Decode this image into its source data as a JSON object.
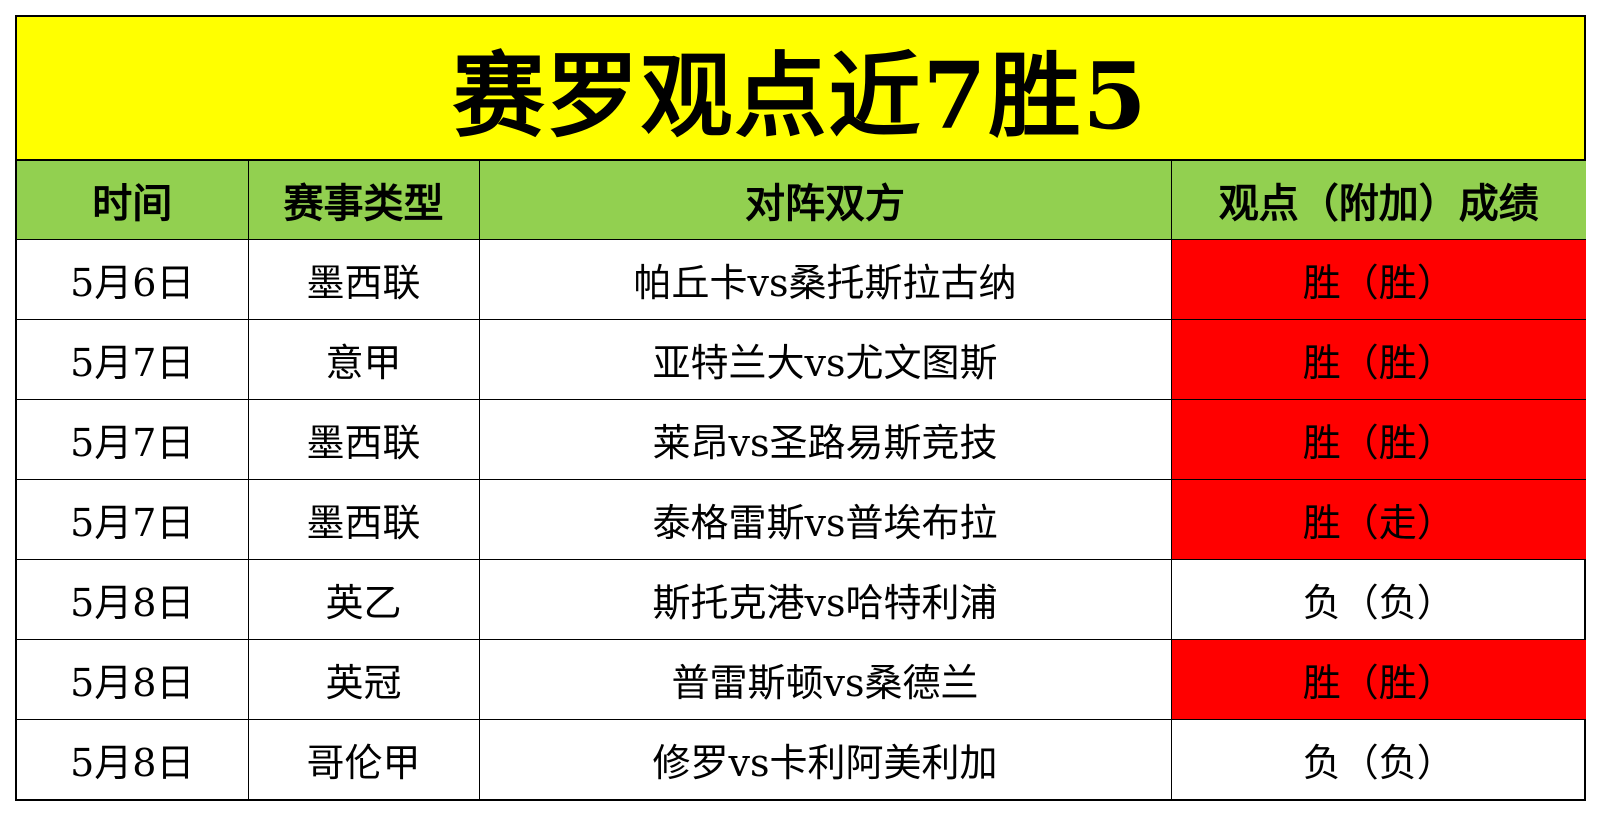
{
  "title": "赛罗观点近7胜5",
  "headers": [
    "时间",
    "赛事类型",
    "对阵双方",
    "观点（附加）成绩"
  ],
  "rows": [
    {
      "date": "5月6日",
      "league": "墨西联",
      "match": "帕丘卡vs桑托斯拉古纳",
      "result": "胜（胜）",
      "win": true
    },
    {
      "date": "5月7日",
      "league": "意甲",
      "match": "亚特兰大vs尤文图斯",
      "result": "胜（胜）",
      "win": true
    },
    {
      "date": "5月7日",
      "league": "墨西联",
      "match": "莱昂vs圣路易斯竞技",
      "result": "胜（胜）",
      "win": true
    },
    {
      "date": "5月7日",
      "league": "墨西联",
      "match": "泰格雷斯vs普埃布拉",
      "result": "胜（走）",
      "win": true
    },
    {
      "date": "5月8日",
      "league": "英乙",
      "match": "斯托克港vs哈特利浦",
      "result": "负（负）",
      "win": false
    },
    {
      "date": "5月8日",
      "league": "英冠",
      "match": "普雷斯顿vs桑德兰",
      "result": "胜（胜）",
      "win": true
    },
    {
      "date": "5月8日",
      "league": "哥伦甲",
      "match": "修罗vs卡利阿美利加",
      "result": "负（负）",
      "win": false
    }
  ],
  "colors": {
    "title_bg": "#ffff00",
    "header_bg": "#92d050",
    "win_bg": "#ff0000"
  }
}
